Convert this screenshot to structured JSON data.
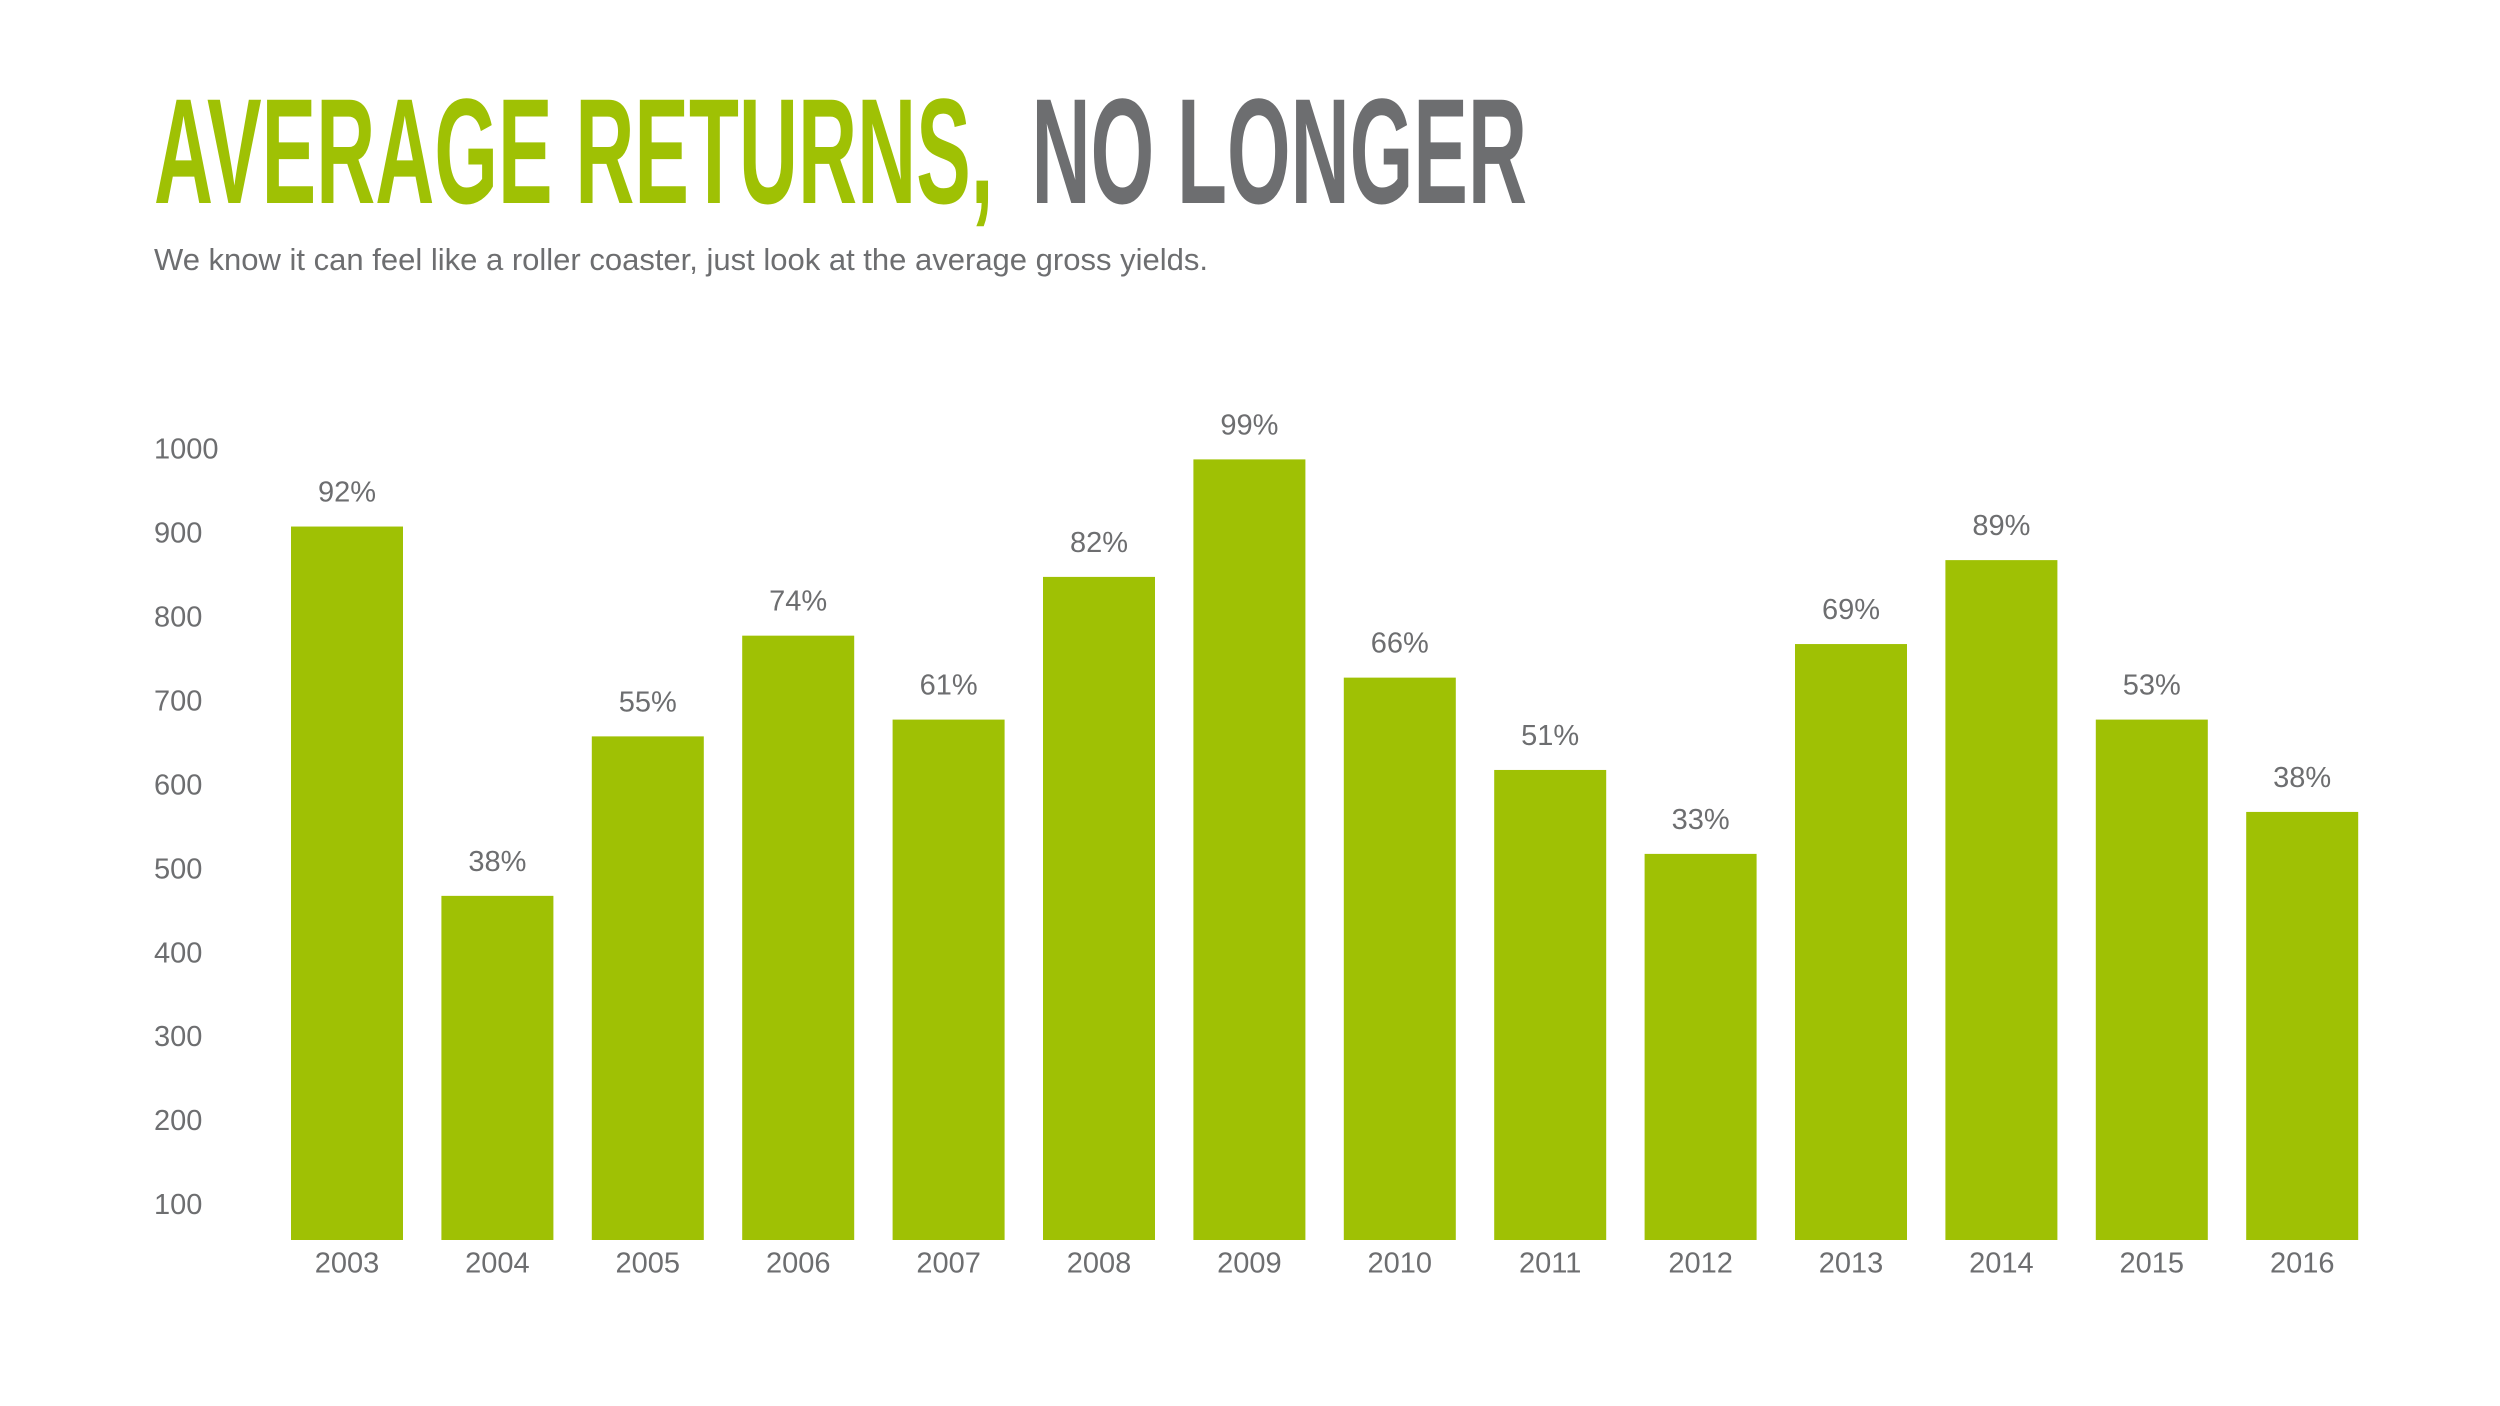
{
  "chart_data": {
    "type": "bar",
    "title_parts": [
      "AVERAGE RETURNS,",
      "NO LONGER"
    ],
    "title_colors": [
      "#9fc104",
      "#6d6e70"
    ],
    "subtitle": "We know it can feel like a roller coaster, just look at the average gross yields.",
    "categories": [
      "2003",
      "2004",
      "2005",
      "2006",
      "2007",
      "2008",
      "2009",
      "2010",
      "2011",
      "2012",
      "2013",
      "2014",
      "2015",
      "2016"
    ],
    "values": [
      910,
      470,
      660,
      780,
      680,
      850,
      990,
      730,
      620,
      520,
      770,
      870,
      680,
      570
    ],
    "annotations": [
      "92%",
      "38%",
      "55%",
      "74%",
      "61%",
      "82%",
      "99%",
      "66%",
      "51%",
      "33%",
      "69%",
      "89%",
      "53%",
      "38%"
    ],
    "color": "#9fc104",
    "ylim": [
      60,
      1000
    ],
    "yticks": [
      100,
      200,
      300,
      400,
      500,
      600,
      700,
      800,
      900,
      1000
    ],
    "grid": false
  }
}
